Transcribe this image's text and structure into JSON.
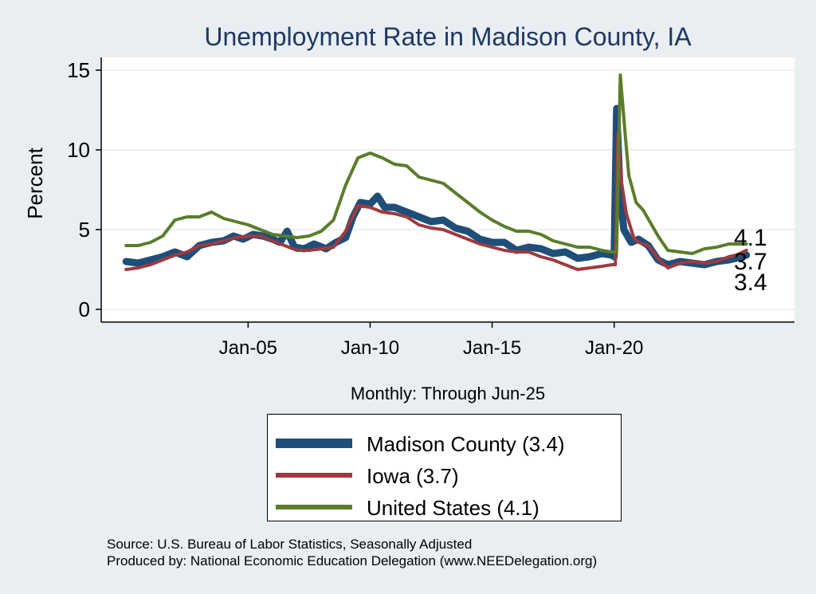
{
  "chart_data": {
    "type": "line",
    "title": "Unemployment Rate in Madison  County, IA",
    "ylabel": "Percent",
    "xlabel": "Monthly: Through Jun-25",
    "ylim": [
      0,
      15
    ],
    "yticks": [
      0,
      5,
      10,
      15
    ],
    "xticks": [
      {
        "label": "Jan-05",
        "value": 2005
      },
      {
        "label": "Jan-10",
        "value": 2010
      },
      {
        "label": "Jan-15",
        "value": 2015
      },
      {
        "label": "Jan-20",
        "value": 2020
      }
    ],
    "grid": true,
    "legend_position": "bottom",
    "series": [
      {
        "name": "Madison  County (3.4)",
        "color": "#1f4e79",
        "end_label": "3.4",
        "points": [
          [
            2000.0,
            3.0
          ],
          [
            2000.5,
            2.9
          ],
          [
            2001.0,
            3.1
          ],
          [
            2001.5,
            3.3
          ],
          [
            2002.0,
            3.6
          ],
          [
            2002.5,
            3.3
          ],
          [
            2003.0,
            4.0
          ],
          [
            2003.5,
            4.2
          ],
          [
            2004.0,
            4.3
          ],
          [
            2004.4,
            4.6
          ],
          [
            2004.8,
            4.4
          ],
          [
            2005.2,
            4.7
          ],
          [
            2005.6,
            4.6
          ],
          [
            2006.0,
            4.4
          ],
          [
            2006.3,
            4.2
          ],
          [
            2006.6,
            4.9
          ],
          [
            2006.9,
            3.9
          ],
          [
            2007.3,
            3.8
          ],
          [
            2007.7,
            4.1
          ],
          [
            2008.2,
            3.8
          ],
          [
            2008.6,
            4.2
          ],
          [
            2009.0,
            4.5
          ],
          [
            2009.3,
            5.8
          ],
          [
            2009.6,
            6.7
          ],
          [
            2010.0,
            6.6
          ],
          [
            2010.3,
            7.1
          ],
          [
            2010.6,
            6.4
          ],
          [
            2011.0,
            6.4
          ],
          [
            2011.5,
            6.1
          ],
          [
            2012.0,
            5.8
          ],
          [
            2012.5,
            5.5
          ],
          [
            2013.0,
            5.6
          ],
          [
            2013.5,
            5.1
          ],
          [
            2014.0,
            4.9
          ],
          [
            2014.5,
            4.4
          ],
          [
            2015.0,
            4.2
          ],
          [
            2015.5,
            4.2
          ],
          [
            2016.0,
            3.7
          ],
          [
            2016.5,
            3.9
          ],
          [
            2017.0,
            3.8
          ],
          [
            2017.5,
            3.5
          ],
          [
            2018.0,
            3.6
          ],
          [
            2018.5,
            3.2
          ],
          [
            2019.0,
            3.3
          ],
          [
            2019.5,
            3.5
          ],
          [
            2019.9,
            3.4
          ],
          [
            2020.0,
            3.3
          ],
          [
            2020.1,
            12.6
          ],
          [
            2020.25,
            7.0
          ],
          [
            2020.4,
            5.0
          ],
          [
            2020.7,
            4.2
          ],
          [
            2021.0,
            4.4
          ],
          [
            2021.4,
            4.0
          ],
          [
            2021.8,
            3.1
          ],
          [
            2022.2,
            2.8
          ],
          [
            2022.7,
            3.0
          ],
          [
            2023.2,
            2.9
          ],
          [
            2023.7,
            2.8
          ],
          [
            2024.2,
            3.0
          ],
          [
            2024.7,
            3.1
          ],
          [
            2025.0,
            3.2
          ],
          [
            2025.42,
            3.4
          ]
        ]
      },
      {
        "name": "Iowa (3.7)",
        "color": "#9e3a3f",
        "end_label": "3.7",
        "points": [
          [
            2000.0,
            2.5
          ],
          [
            2000.5,
            2.6
          ],
          [
            2001.0,
            2.8
          ],
          [
            2001.5,
            3.1
          ],
          [
            2002.0,
            3.4
          ],
          [
            2002.5,
            3.6
          ],
          [
            2003.0,
            4.0
          ],
          [
            2003.5,
            4.1
          ],
          [
            2004.0,
            4.3
          ],
          [
            2004.5,
            4.5
          ],
          [
            2005.0,
            4.6
          ],
          [
            2005.5,
            4.6
          ],
          [
            2006.0,
            4.3
          ],
          [
            2006.5,
            4.0
          ],
          [
            2007.0,
            3.7
          ],
          [
            2007.5,
            3.7
          ],
          [
            2008.0,
            3.8
          ],
          [
            2008.5,
            3.9
          ],
          [
            2009.0,
            4.9
          ],
          [
            2009.5,
            6.5
          ],
          [
            2010.0,
            6.4
          ],
          [
            2010.5,
            6.1
          ],
          [
            2011.0,
            6.0
          ],
          [
            2011.5,
            5.8
          ],
          [
            2012.0,
            5.3
          ],
          [
            2012.5,
            5.1
          ],
          [
            2013.0,
            5.0
          ],
          [
            2013.5,
            4.7
          ],
          [
            2014.0,
            4.4
          ],
          [
            2014.5,
            4.1
          ],
          [
            2015.0,
            3.9
          ],
          [
            2015.5,
            3.7
          ],
          [
            2016.0,
            3.6
          ],
          [
            2016.5,
            3.6
          ],
          [
            2017.0,
            3.3
          ],
          [
            2017.5,
            3.1
          ],
          [
            2018.0,
            2.8
          ],
          [
            2018.5,
            2.5
          ],
          [
            2019.0,
            2.6
          ],
          [
            2019.5,
            2.7
          ],
          [
            2019.9,
            2.8
          ],
          [
            2020.05,
            2.8
          ],
          [
            2020.15,
            11.0
          ],
          [
            2020.3,
            8.0
          ],
          [
            2020.5,
            6.0
          ],
          [
            2020.8,
            4.5
          ],
          [
            2021.0,
            4.2
          ],
          [
            2021.4,
            4.0
          ],
          [
            2021.8,
            3.2
          ],
          [
            2022.2,
            2.6
          ],
          [
            2022.7,
            2.9
          ],
          [
            2023.2,
            3.0
          ],
          [
            2023.7,
            2.9
          ],
          [
            2024.2,
            3.0
          ],
          [
            2024.7,
            3.3
          ],
          [
            2025.0,
            3.4
          ],
          [
            2025.42,
            3.7
          ]
        ]
      },
      {
        "name": "United States (4.1)",
        "color": "#5a7d2a",
        "end_label": "4.1",
        "points": [
          [
            2000.0,
            4.0
          ],
          [
            2000.5,
            4.0
          ],
          [
            2001.0,
            4.2
          ],
          [
            2001.5,
            4.6
          ],
          [
            2002.0,
            5.6
          ],
          [
            2002.5,
            5.8
          ],
          [
            2003.0,
            5.8
          ],
          [
            2003.5,
            6.1
          ],
          [
            2004.0,
            5.7
          ],
          [
            2004.5,
            5.5
          ],
          [
            2005.0,
            5.3
          ],
          [
            2005.5,
            5.0
          ],
          [
            2006.0,
            4.7
          ],
          [
            2006.5,
            4.6
          ],
          [
            2007.0,
            4.5
          ],
          [
            2007.5,
            4.6
          ],
          [
            2008.0,
            4.9
          ],
          [
            2008.5,
            5.6
          ],
          [
            2009.0,
            7.8
          ],
          [
            2009.5,
            9.5
          ],
          [
            2010.0,
            9.8
          ],
          [
            2010.5,
            9.5
          ],
          [
            2011.0,
            9.1
          ],
          [
            2011.5,
            9.0
          ],
          [
            2012.0,
            8.3
          ],
          [
            2012.5,
            8.1
          ],
          [
            2013.0,
            7.9
          ],
          [
            2013.5,
            7.3
          ],
          [
            2014.0,
            6.7
          ],
          [
            2014.5,
            6.1
          ],
          [
            2015.0,
            5.6
          ],
          [
            2015.5,
            5.2
          ],
          [
            2016.0,
            4.9
          ],
          [
            2016.5,
            4.9
          ],
          [
            2017.0,
            4.7
          ],
          [
            2017.5,
            4.3
          ],
          [
            2018.0,
            4.1
          ],
          [
            2018.5,
            3.9
          ],
          [
            2019.0,
            3.9
          ],
          [
            2019.5,
            3.7
          ],
          [
            2019.9,
            3.6
          ],
          [
            2020.1,
            3.6
          ],
          [
            2020.25,
            14.7
          ],
          [
            2020.45,
            11.0
          ],
          [
            2020.6,
            8.4
          ],
          [
            2020.9,
            6.7
          ],
          [
            2021.2,
            6.2
          ],
          [
            2021.5,
            5.4
          ],
          [
            2021.8,
            4.6
          ],
          [
            2022.2,
            3.7
          ],
          [
            2022.7,
            3.6
          ],
          [
            2023.2,
            3.5
          ],
          [
            2023.7,
            3.8
          ],
          [
            2024.2,
            3.9
          ],
          [
            2024.7,
            4.1
          ],
          [
            2025.0,
            4.1
          ],
          [
            2025.42,
            4.1
          ]
        ]
      }
    ]
  },
  "footer": {
    "source": "Source: U.S. Bureau of Labor Statistics, Seasonally Adjusted",
    "produced_by": "Produced by: National Economic Education Delegation (www.NEEDelegation.org)"
  }
}
